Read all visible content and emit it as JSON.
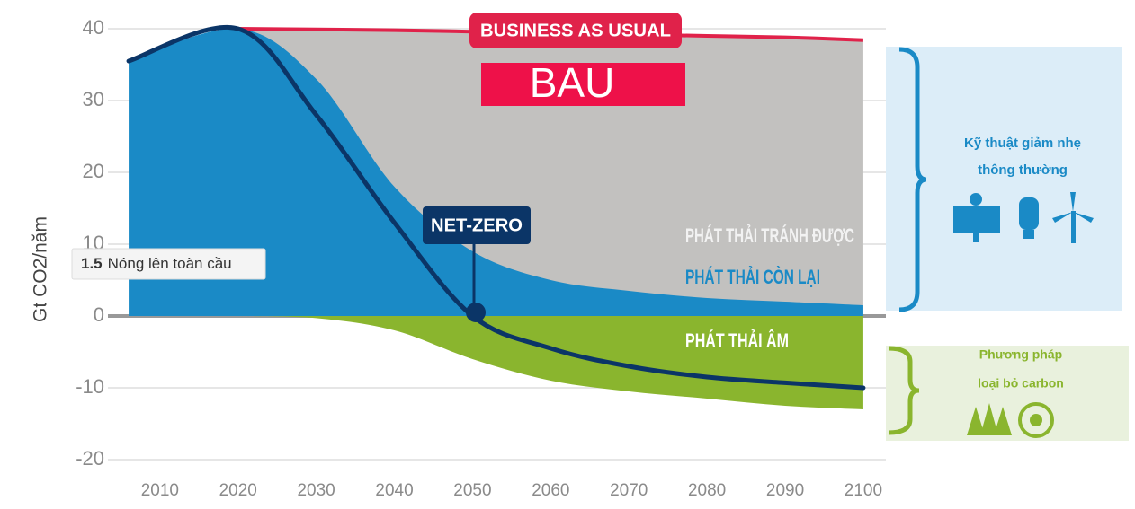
{
  "chart_data": {
    "type": "area",
    "y_label": "Gt CO2/năm",
    "x": [
      2006,
      2020,
      2030,
      2040,
      2050,
      2060,
      2070,
      2080,
      2090,
      2100
    ],
    "xlim": [
      2003,
      2103
    ],
    "xticks": [
      2010,
      2020,
      2030,
      2040,
      2050,
      2060,
      2070,
      2080,
      2090,
      2100
    ],
    "ylim": [
      -22,
      42
    ],
    "yticks": [
      -20,
      -10,
      0,
      10,
      20,
      30,
      40
    ],
    "grid": true,
    "series": [
      {
        "kind": "area",
        "color": "#c2c1bf",
        "line_color": "#e0224a",
        "values": [
          null,
          40,
          39.9,
          39.8,
          39.6,
          39.4,
          39.2,
          39,
          38.8,
          38.4
        ]
      },
      {
        "kind": "area",
        "color": "#1a8ac6",
        "values": [
          35.5,
          40,
          33,
          18,
          9,
          5,
          3.5,
          2.5,
          2,
          1.5
        ]
      },
      {
        "kind": "area",
        "color": "#8ab52e",
        "values": [
          null,
          0,
          -0.3,
          -2,
          -6,
          -9,
          -10.5,
          -11.5,
          -12.5,
          -13
        ]
      },
      {
        "kind": "line",
        "color": "#0b3567",
        "values": [
          35.5,
          40,
          28,
          13,
          0,
          -4.5,
          -7,
          -8.5,
          -9.3,
          -10
        ]
      }
    ],
    "annotations": {
      "bau_banner": "BUSINESS AS USUAL",
      "bau": "BAU",
      "net_zero": "NET-ZERO",
      "avoided": "PHÁT THẢI TRÁNH ĐƯỢC",
      "remaining": "PHÁT THẢI CÒN LẠI",
      "negative": "PHÁT THẢI ÂM",
      "warming_value": "1.5",
      "warming_text": "Nóng lên toàn cầu",
      "mitigation": [
        "Kỹ thuật giảm nhẹ",
        "thông thường"
      ],
      "removal": [
        "Phương pháp",
        "loại bỏ carbon"
      ]
    }
  }
}
